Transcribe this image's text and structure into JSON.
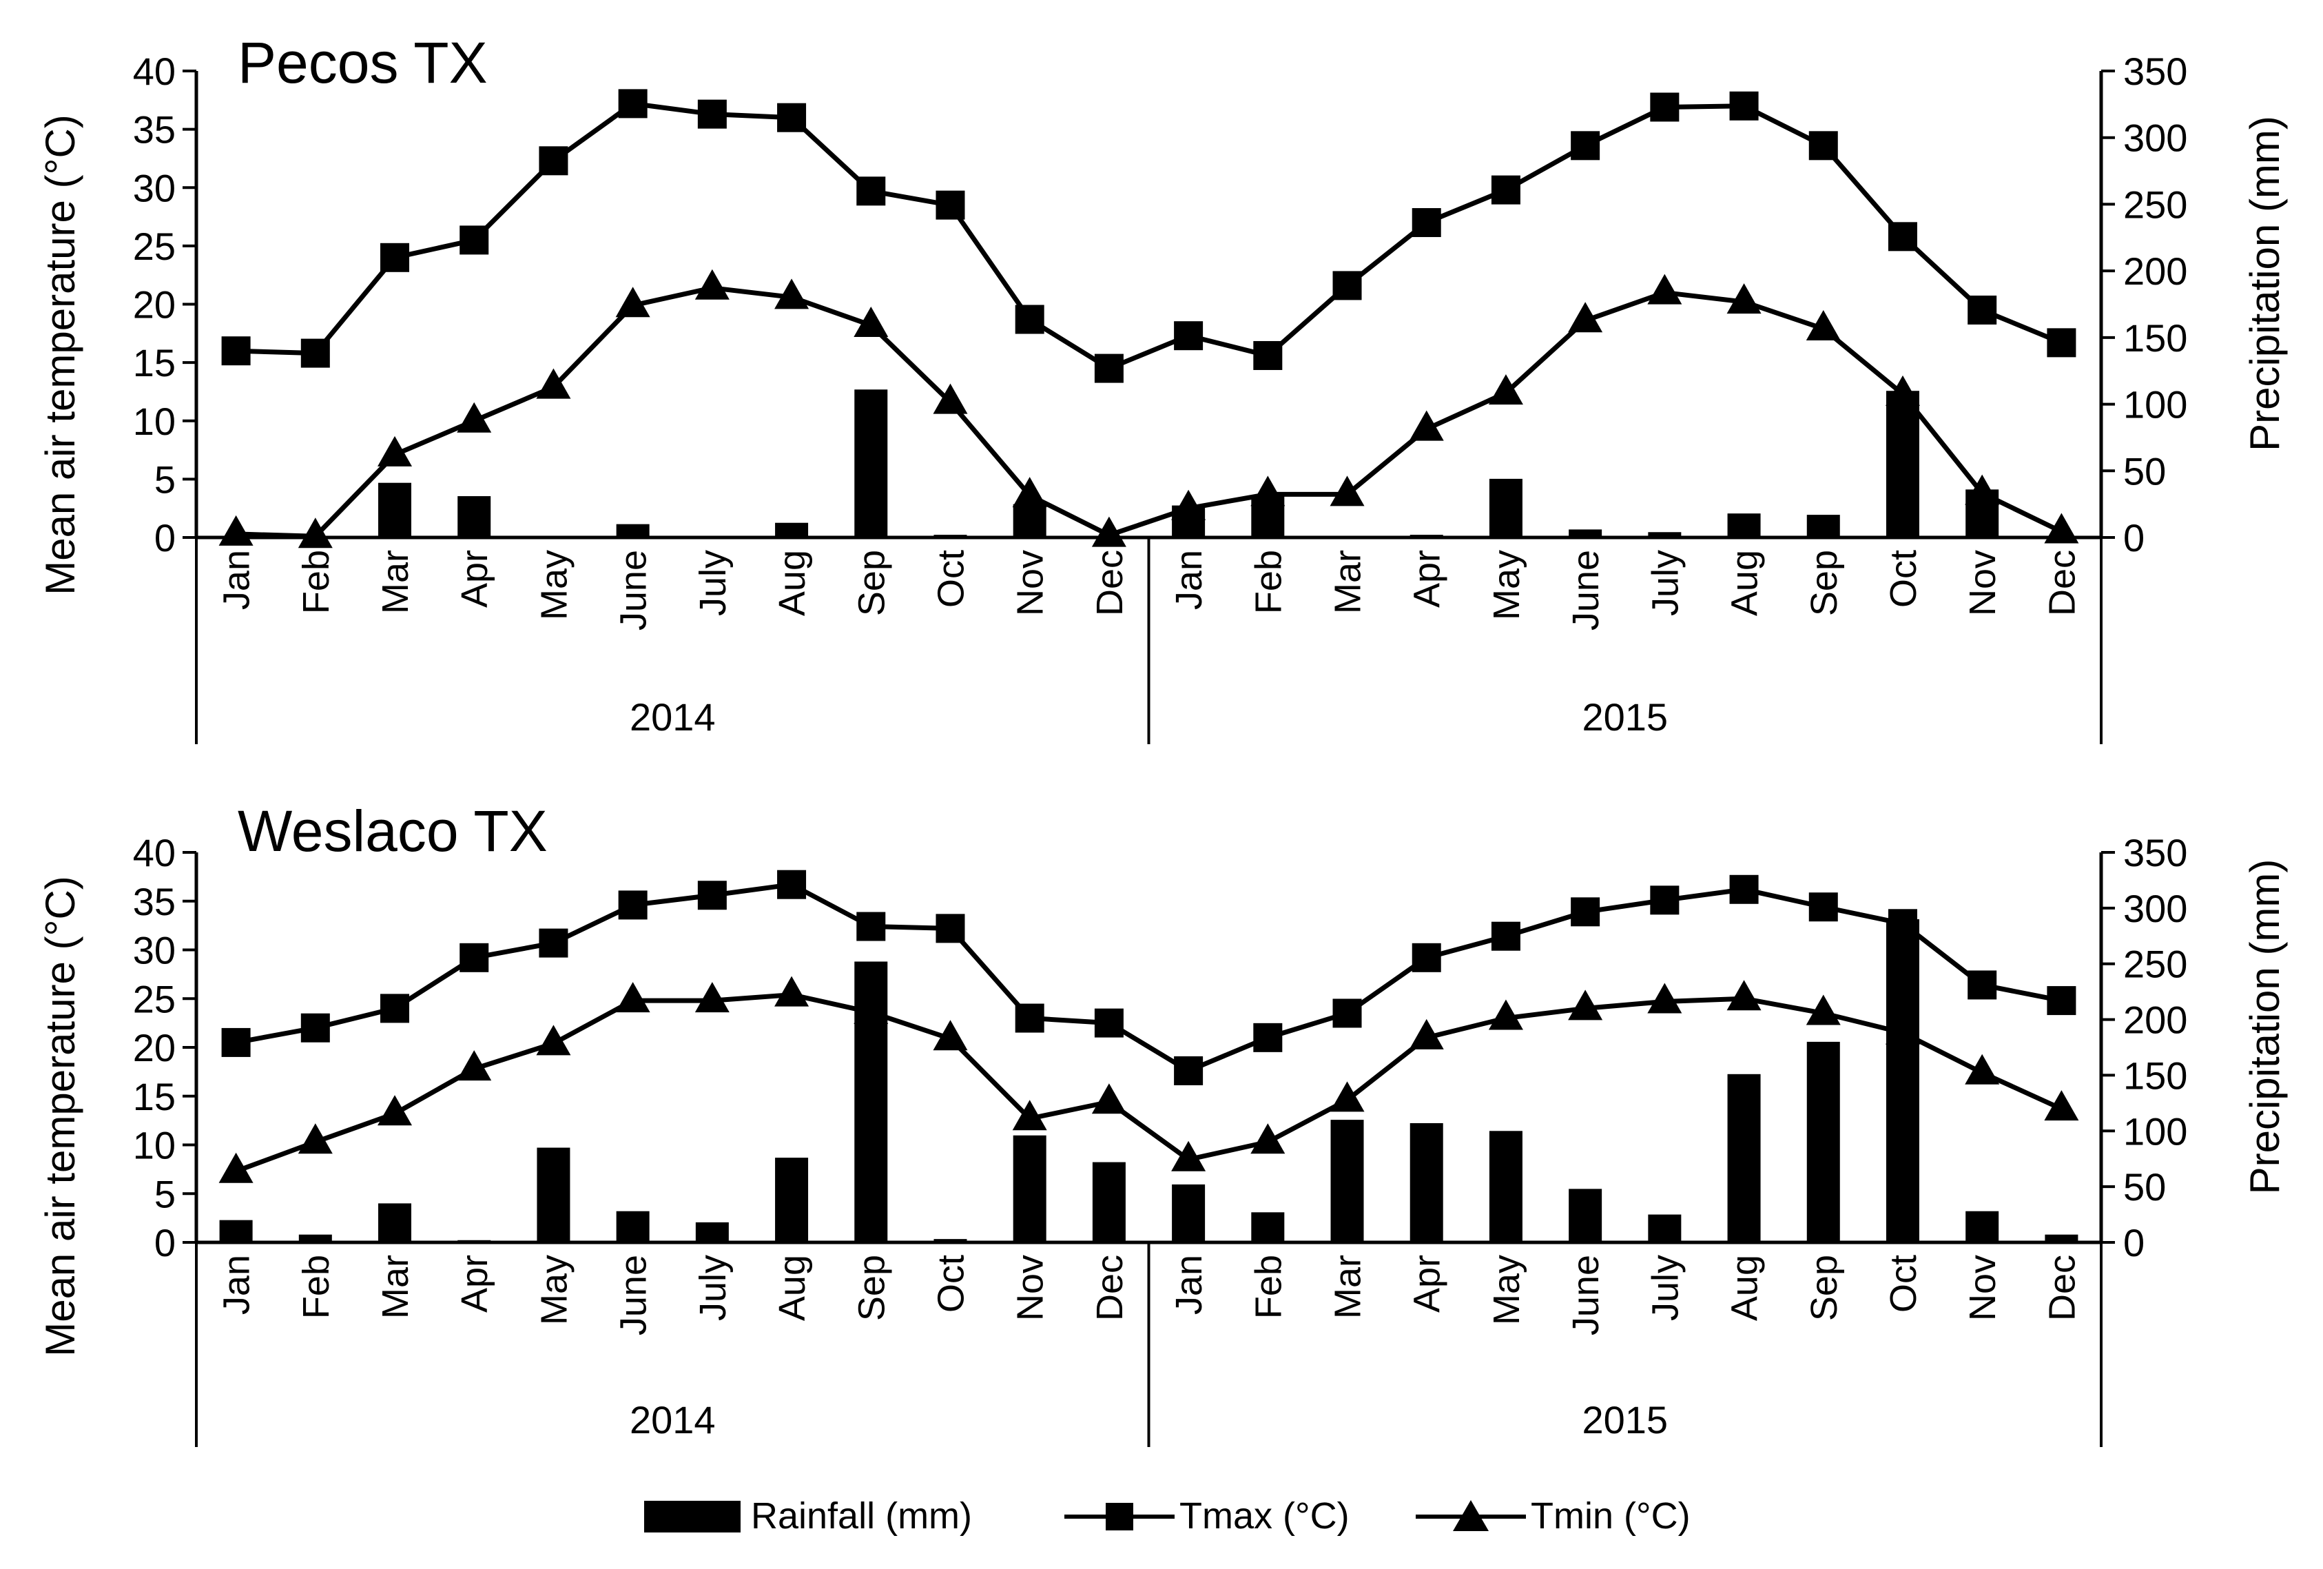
{
  "figure": {
    "legend": {
      "rainfall": "Rainfall (mm)",
      "tmax": "Tmax (°C)",
      "tmin": "Tmin (°C)"
    },
    "colors": {
      "ink": "#000000",
      "background": "#ffffff"
    }
  },
  "chart_data": [
    {
      "type": "bar+line",
      "title": "Pecos TX",
      "ylabel": "Mean air temperature (°C)",
      "y2label": "Precipitation (mm)",
      "ylim": [
        0,
        40
      ],
      "yticks": [
        0,
        5,
        10,
        15,
        20,
        25,
        30,
        35,
        40
      ],
      "y2lim": [
        0,
        350
      ],
      "y2ticks": [
        0,
        50,
        100,
        150,
        200,
        250,
        300,
        350
      ],
      "categories": [
        "Jan",
        "Feb",
        "Mar",
        "Apr",
        "May",
        "June",
        "July",
        "Aug",
        "Sep",
        "Oct",
        "Nov",
        "Dec",
        "Jan",
        "Feb",
        "Mar",
        "Apr",
        "May",
        "June",
        "July",
        "Aug",
        "Sep",
        "Oct",
        "Nov",
        "Dec"
      ],
      "groups": [
        {
          "label": "2014",
          "start": 0,
          "end": 11
        },
        {
          "label": "2015",
          "start": 12,
          "end": 23
        }
      ],
      "series": [
        {
          "name": "Rainfall (mm)",
          "kind": "bar",
          "axis": "right",
          "values": [
            0,
            0,
            41,
            31,
            0,
            10,
            1,
            11,
            111,
            2,
            25,
            0,
            24,
            32,
            1,
            2,
            44,
            6,
            4,
            18,
            17,
            110,
            36,
            0
          ]
        },
        {
          "name": "Tmax (°C)",
          "kind": "line",
          "marker": "square",
          "axis": "left",
          "values": [
            16.0,
            15.8,
            24.0,
            25.5,
            32.3,
            37.2,
            36.3,
            36.0,
            29.7,
            28.5,
            18.7,
            14.5,
            17.3,
            15.6,
            21.6,
            27.0,
            29.8,
            33.6,
            36.9,
            37.0,
            33.6,
            25.8,
            19.5,
            16.7
          ]
        },
        {
          "name": "Tmin (°C)",
          "kind": "line",
          "marker": "triangle",
          "axis": "left",
          "values": [
            0.3,
            0.1,
            7.1,
            10.0,
            12.9,
            19.9,
            21.4,
            20.6,
            18.2,
            11.6,
            3.6,
            0.2,
            2.5,
            3.7,
            3.7,
            9.3,
            12.4,
            18.6,
            21.0,
            20.2,
            17.9,
            12.3,
            3.8,
            0.5
          ]
        }
      ]
    },
    {
      "type": "bar+line",
      "title": "Weslaco TX",
      "ylabel": "Mean air temperature (°C)",
      "y2label": "Precipitation (mm)",
      "ylim": [
        0,
        40
      ],
      "yticks": [
        0,
        5,
        10,
        15,
        20,
        25,
        30,
        35,
        40
      ],
      "y2lim": [
        0,
        350
      ],
      "y2ticks": [
        0,
        50,
        100,
        150,
        200,
        250,
        300,
        350
      ],
      "categories": [
        "Jan",
        "Feb",
        "Mar",
        "Apr",
        "May",
        "June",
        "July",
        "Aug",
        "Sep",
        "Oct",
        "Nov",
        "Dec",
        "Jan",
        "Feb",
        "Mar",
        "Apr",
        "May",
        "June",
        "July",
        "Aug",
        "Sep",
        "Oct",
        "Nov",
        "Dec"
      ],
      "groups": [
        {
          "label": "2014",
          "start": 0,
          "end": 11
        },
        {
          "label": "2015",
          "start": 12,
          "end": 23
        }
      ],
      "series": [
        {
          "name": "Rainfall (mm)",
          "kind": "bar",
          "axis": "right",
          "values": [
            20,
            7,
            35,
            2,
            85,
            28,
            18,
            76,
            252,
            3,
            96,
            72,
            52,
            27,
            110,
            107,
            100,
            48,
            25,
            151,
            180,
            290,
            28,
            7
          ]
        },
        {
          "name": "Tmax (°C)",
          "kind": "line",
          "marker": "square",
          "axis": "left",
          "values": [
            20.5,
            22.0,
            24.0,
            29.2,
            30.7,
            34.6,
            35.6,
            36.7,
            32.4,
            32.2,
            23.0,
            22.5,
            17.6,
            21.0,
            23.5,
            29.2,
            31.4,
            33.9,
            35.1,
            36.2,
            34.4,
            32.7,
            26.4,
            24.8
          ]
        },
        {
          "name": "Tmin (°C)",
          "kind": "line",
          "marker": "triangle",
          "axis": "left",
          "values": [
            7.3,
            10.3,
            13.2,
            17.8,
            20.4,
            24.8,
            24.8,
            25.4,
            23.6,
            20.9,
            12.7,
            14.4,
            8.5,
            10.3,
            14.6,
            21.0,
            23.0,
            24.0,
            24.7,
            25.0,
            23.5,
            21.5,
            17.4,
            13.7
          ]
        }
      ]
    }
  ]
}
